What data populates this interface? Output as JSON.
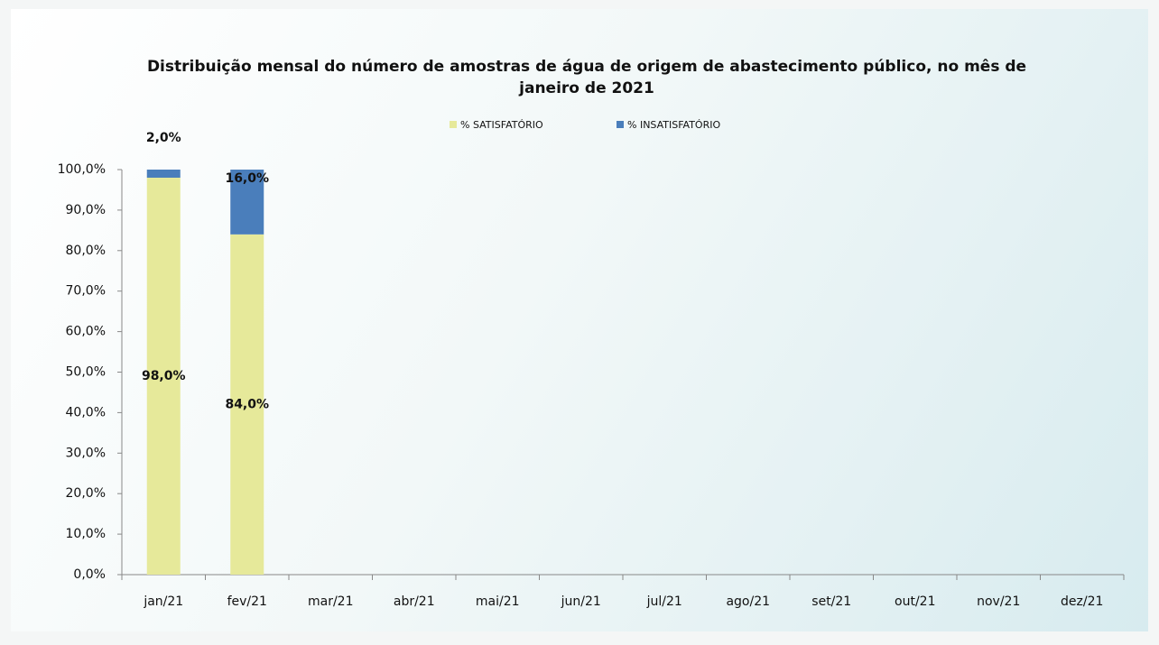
{
  "chart_data": {
    "type": "stacked_bar",
    "title": "Distribuição mensal do número de amostras de água de origem de abastecimento público, no mês de janeiro de 2021",
    "categories": [
      "jan/21",
      "fev/21",
      "mar/21",
      "abr/21",
      "mai/21",
      "jun/21",
      "jul/21",
      "ago/21",
      "set/21",
      "out/21",
      "nov/21",
      "dez/21"
    ],
    "series": [
      {
        "name": "% SATISFATÓRIO",
        "color": "#e6e99a",
        "values": [
          98,
          84,
          null,
          null,
          null,
          null,
          null,
          null,
          null,
          null,
          null,
          null
        ],
        "value_labels": [
          "98,0%",
          "84,0%",
          null,
          null,
          null,
          null,
          null,
          null,
          null,
          null,
          null,
          null
        ]
      },
      {
        "name": "% INSATISFATÓRIO",
        "color": "#4a7ebb",
        "values": [
          2,
          16,
          null,
          null,
          null,
          null,
          null,
          null,
          null,
          null,
          null,
          null
        ],
        "value_labels": [
          "2,0%",
          "16,0%",
          null,
          null,
          null,
          null,
          null,
          null,
          null,
          null,
          null,
          null
        ]
      }
    ],
    "ylim": [
      0,
      100
    ],
    "yticks": [
      {
        "value": 0,
        "label": "0,0%"
      },
      {
        "value": 10,
        "label": "10,0%"
      },
      {
        "value": 20,
        "label": "20,0%"
      },
      {
        "value": 30,
        "label": "30,0%"
      },
      {
        "value": 40,
        "label": "40,0%"
      },
      {
        "value": 50,
        "label": "50,0%"
      },
      {
        "value": 60,
        "label": "60,0%"
      },
      {
        "value": 70,
        "label": "70,0%"
      },
      {
        "value": 80,
        "label": "80,0%"
      },
      {
        "value": 90,
        "label": "90,0%"
      },
      {
        "value": 100,
        "label": "100,0%"
      }
    ],
    "grid": false,
    "legend": "top"
  }
}
